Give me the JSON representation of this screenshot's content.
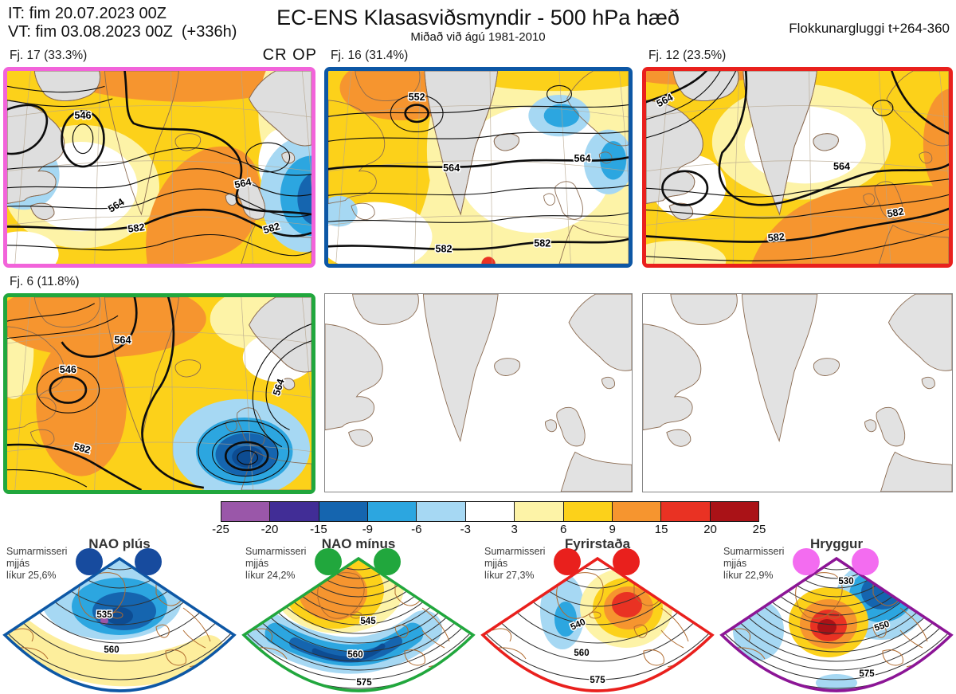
{
  "header": {
    "init_line": "IT: fim 20.07.2023 00Z",
    "valid_line": "VT: fim 03.08.2023 00Z  (+336h)",
    "title": "EC-ENS Klasasviðsmyndir - 500 hPa hæð",
    "subtitle": "Miðað við ágú 1981-2010",
    "window_label": "Flokkunargluggi t+264-360"
  },
  "clusters": [
    {
      "label": "Fj. 17 (33.3%)",
      "tag": "CR OP",
      "border": "#f263da",
      "contours": [
        "546",
        "564",
        "582",
        "564",
        "582"
      ]
    },
    {
      "label": "Fj. 16 (31.4%)",
      "tag": "",
      "border": "#0d57a5",
      "contours": [
        "552",
        "564",
        "564",
        "582",
        "582"
      ]
    },
    {
      "label": "Fj. 12 (23.5%)",
      "tag": "",
      "border": "#e9201d",
      "contours": [
        "564",
        "564",
        "582",
        "582"
      ]
    },
    {
      "label": "Fj. 6 (11.8%)",
      "tag": "",
      "border": "#21a73d",
      "contours": [
        "546",
        "564",
        "582",
        "564"
      ]
    }
  ],
  "colorbar": {
    "ticks": [
      "-25",
      "-20",
      "-15",
      "-9",
      "-6",
      "-3",
      "3",
      "6",
      "9",
      "15",
      "20",
      "25"
    ],
    "colors": [
      "#9a57a9",
      "#412d96",
      "#1565af",
      "#2ca6e0",
      "#a6d8f3",
      "#ffffff",
      "#fdf3a7",
      "#fcd11a",
      "#f6952f",
      "#e93223",
      "#aa1217"
    ]
  },
  "scenarios": [
    {
      "title": "NAO plús",
      "info1": "Sumarmisseri",
      "info2": "mjjás",
      "info3": "líkur 25,6%",
      "dot": "#174b9e",
      "border": "#0d57a5",
      "contours": [
        "535",
        "560"
      ]
    },
    {
      "title": "NAO mínus",
      "info1": "Sumarmisseri",
      "info2": "mjjás",
      "info3": "líkur 24,2%",
      "dot": "#21a73d",
      "border": "#21a73d",
      "contours": [
        "545",
        "560",
        "575"
      ]
    },
    {
      "title": "Fyrirstaða",
      "info1": "Sumarmisseri",
      "info2": "mjjás",
      "info3": "líkur 27,3%",
      "dot": "#e9201d",
      "border": "#e9201d",
      "contours": [
        "540",
        "560",
        "575"
      ]
    },
    {
      "title": "Hryggur",
      "info1": "Sumarmisseri",
      "info2": "mjjás",
      "info3": "líkur 22,9%",
      "dot": "#f36cf0",
      "border": "#8c1596",
      "contours": [
        "530",
        "550",
        "575"
      ]
    }
  ]
}
